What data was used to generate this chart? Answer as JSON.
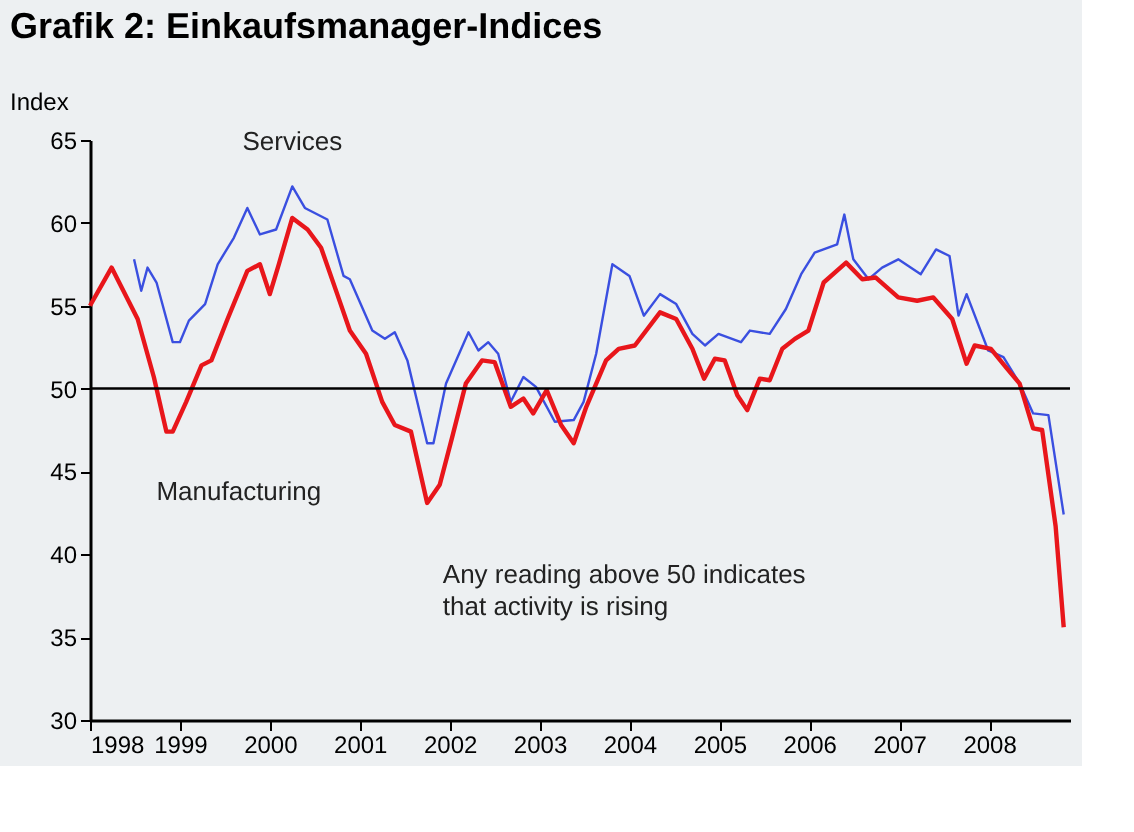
{
  "chart_data": {
    "type": "line",
    "title": "Grafik 2: Einkaufsmanager-Indices",
    "ylabel": "Index",
    "xlim": [
      1998,
      2008.9
    ],
    "xticks": [
      1998,
      1999,
      2000,
      2001,
      2002,
      2003,
      2004,
      2005,
      2006,
      2007,
      2008
    ],
    "ylim": [
      30,
      65
    ],
    "yticks": [
      30,
      35,
      40,
      45,
      50,
      55,
      60,
      65
    ],
    "grid": false,
    "legend": false,
    "marker": "none",
    "line_style": "solid",
    "ref_lines": [
      {
        "axis": "y",
        "value": 50,
        "color": "#000000"
      }
    ],
    "annotations": [
      "Any reading above 50 indicates that activity is rising"
    ],
    "series": [
      {
        "name": "Services",
        "color": "#3a4fe0",
        "x": [
          1998.49,
          1998.57,
          1998.64,
          1998.74,
          1998.92,
          1999.0,
          1999.1,
          1999.28,
          1999.42,
          1999.6,
          1999.75,
          1999.89,
          2000.07,
          2000.25,
          2000.39,
          2000.64,
          2000.82,
          2000.89,
          2001.14,
          2001.28,
          2001.39,
          2001.53,
          2001.75,
          2001.82,
          2001.96,
          2002.21,
          2002.32,
          2002.43,
          2002.54,
          2002.68,
          2002.82,
          2002.96,
          2003.17,
          2003.38,
          2003.49,
          2003.63,
          2003.81,
          2004.0,
          2004.16,
          2004.34,
          2004.52,
          2004.7,
          2004.84,
          2004.99,
          2005.24,
          2005.34,
          2005.56,
          2005.74,
          2005.91,
          2006.06,
          2006.31,
          2006.39,
          2006.49,
          2006.66,
          2006.81,
          2006.99,
          2007.24,
          2007.41,
          2007.56,
          2007.66,
          2007.75,
          2007.99,
          2008.16,
          2008.34,
          2008.49,
          2008.66,
          2008.83
        ],
        "values": [
          57.8,
          55.9,
          57.3,
          56.4,
          52.8,
          52.8,
          54.1,
          55.1,
          57.5,
          59.1,
          60.9,
          59.3,
          59.6,
          62.2,
          60.9,
          60.2,
          56.8,
          56.6,
          53.5,
          53.0,
          53.4,
          51.7,
          46.7,
          46.7,
          50.3,
          53.4,
          52.3,
          52.8,
          52.1,
          49.2,
          50.7,
          50.1,
          48.0,
          48.1,
          49.2,
          52.1,
          57.5,
          56.8,
          54.4,
          55.7,
          55.1,
          53.3,
          52.6,
          53.3,
          52.8,
          53.5,
          53.3,
          54.8,
          56.9,
          58.2,
          58.7,
          60.5,
          57.8,
          56.6,
          57.3,
          57.8,
          56.9,
          58.4,
          58.0,
          54.4,
          55.7,
          52.3,
          51.9,
          50.3,
          48.5,
          48.4,
          42.4
        ]
      },
      {
        "name": "Manufacturing",
        "color": "#e8161b",
        "x": [
          1998.0,
          1998.24,
          1998.53,
          1998.71,
          1998.85,
          1998.92,
          1999.07,
          1999.24,
          1999.35,
          1999.53,
          1999.75,
          1999.89,
          2000.0,
          2000.1,
          2000.25,
          2000.42,
          2000.57,
          2000.75,
          2000.89,
          2001.07,
          2001.25,
          2001.39,
          2001.57,
          2001.75,
          2001.89,
          2002.03,
          2002.18,
          2002.36,
          2002.5,
          2002.68,
          2002.82,
          2002.93,
          2003.08,
          2003.24,
          2003.38,
          2003.52,
          2003.74,
          2003.88,
          2004.06,
          2004.34,
          2004.52,
          2004.7,
          2004.83,
          2004.95,
          2005.06,
          2005.2,
          2005.31,
          2005.45,
          2005.56,
          2005.7,
          2005.84,
          2005.99,
          2006.16,
          2006.41,
          2006.59,
          2006.74,
          2006.99,
          2007.2,
          2007.38,
          2007.59,
          2007.75,
          2007.84,
          2008.02,
          2008.2,
          2008.34,
          2008.49,
          2008.59,
          2008.74,
          2008.83
        ],
        "values": [
          55.0,
          57.3,
          54.2,
          50.7,
          47.4,
          47.4,
          49.2,
          51.4,
          51.7,
          54.2,
          57.1,
          57.5,
          55.7,
          57.5,
          60.3,
          59.6,
          58.5,
          55.7,
          53.5,
          52.1,
          49.2,
          47.8,
          47.4,
          43.1,
          44.2,
          47.1,
          50.3,
          51.7,
          51.6,
          48.9,
          49.4,
          48.5,
          49.9,
          47.8,
          46.7,
          48.9,
          51.7,
          52.4,
          52.6,
          54.6,
          54.2,
          52.4,
          50.6,
          51.8,
          51.7,
          49.6,
          48.7,
          50.6,
          50.5,
          52.4,
          53.0,
          53.5,
          56.4,
          57.6,
          56.6,
          56.7,
          55.5,
          55.3,
          55.5,
          54.2,
          51.5,
          52.6,
          52.4,
          51.2,
          50.3,
          47.6,
          47.5,
          41.7,
          35.6
        ]
      }
    ]
  }
}
